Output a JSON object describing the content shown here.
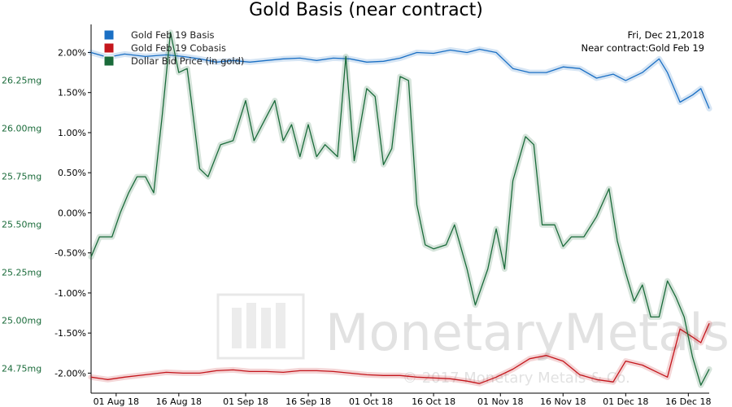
{
  "chart_data": {
    "type": "line",
    "title": "Gold Basis (near contract)",
    "info": {
      "date": "Fri, Dec 21,2018",
      "contract": "Near contract:Gold Feb 19"
    },
    "watermark": {
      "brand": "MonetaryMetals",
      "copyright": "© 2017 Monetary Metals & Co."
    },
    "x_ticks": [
      "01 Aug 18",
      "16 Aug 18",
      "01 Sep 18",
      "16 Sep 18",
      "01 Oct 18",
      "16 Oct 18",
      "01 Nov 18",
      "16 Nov 18",
      "01 Dec 18",
      "16 Dec 18"
    ],
    "x_range": [
      "2018-07-26",
      "2018-12-21"
    ],
    "left_axis": {
      "ticks": [
        "2.00%",
        "1.50%",
        "1.00%",
        "0.50%",
        "0.00%",
        "-0.50%",
        "-1.00%",
        "-1.50%",
        "-2.00%"
      ],
      "ylim": [
        -2.25,
        2.35
      ],
      "unit": "%"
    },
    "right_axis_labels": {
      "ticks": [
        "26.25mg",
        "26.00mg",
        "25.75mg",
        "25.50mg",
        "25.25mg",
        "25.00mg",
        "24.75mg"
      ],
      "ylim": [
        24.62,
        26.54
      ],
      "unit": "mg"
    },
    "series": [
      {
        "name": "Gold Feb 19 Basis",
        "color": "#1a6fc4",
        "axis": "left",
        "x": [
          "2018-07-26",
          "2018-07-30",
          "2018-08-03",
          "2018-08-08",
          "2018-08-13",
          "2018-08-17",
          "2018-08-21",
          "2018-08-25",
          "2018-08-29",
          "2018-09-02",
          "2018-09-06",
          "2018-09-10",
          "2018-09-14",
          "2018-09-18",
          "2018-09-22",
          "2018-09-26",
          "2018-09-30",
          "2018-10-04",
          "2018-10-08",
          "2018-10-12",
          "2018-10-16",
          "2018-10-20",
          "2018-10-24",
          "2018-10-27",
          "2018-10-31",
          "2018-11-04",
          "2018-11-08",
          "2018-11-12",
          "2018-11-16",
          "2018-11-20",
          "2018-11-24",
          "2018-11-28",
          "2018-12-01",
          "2018-12-05",
          "2018-12-09",
          "2018-12-11",
          "2018-12-14",
          "2018-12-17",
          "2018-12-19",
          "2018-12-21"
        ],
        "values": [
          2.0,
          1.94,
          1.98,
          1.95,
          1.97,
          1.95,
          1.92,
          1.88,
          1.9,
          1.88,
          1.9,
          1.92,
          1.93,
          1.9,
          1.93,
          1.92,
          1.88,
          1.89,
          1.93,
          2.0,
          1.99,
          2.03,
          2.0,
          2.04,
          2.0,
          1.8,
          1.75,
          1.75,
          1.82,
          1.8,
          1.68,
          1.73,
          1.65,
          1.75,
          1.92,
          1.75,
          1.38,
          1.47,
          1.55,
          1.3
        ]
      },
      {
        "name": "Gold Feb 19 Cobasis",
        "color": "#c4161c",
        "axis": "left",
        "x": [
          "2018-07-26",
          "2018-07-30",
          "2018-08-03",
          "2018-08-08",
          "2018-08-13",
          "2018-08-17",
          "2018-08-21",
          "2018-08-25",
          "2018-08-29",
          "2018-09-02",
          "2018-09-06",
          "2018-09-10",
          "2018-09-14",
          "2018-09-18",
          "2018-09-22",
          "2018-09-26",
          "2018-09-30",
          "2018-10-04",
          "2018-10-08",
          "2018-10-12",
          "2018-10-16",
          "2018-10-20",
          "2018-10-24",
          "2018-10-27",
          "2018-10-31",
          "2018-11-04",
          "2018-11-08",
          "2018-11-12",
          "2018-11-16",
          "2018-11-20",
          "2018-11-24",
          "2018-11-28",
          "2018-12-01",
          "2018-12-05",
          "2018-12-09",
          "2018-12-11",
          "2018-12-14",
          "2018-12-17",
          "2018-12-19",
          "2018-12-21"
        ],
        "values": [
          -2.05,
          -2.08,
          -2.05,
          -2.02,
          -1.99,
          -2.0,
          -2.0,
          -1.97,
          -1.96,
          -1.98,
          -1.98,
          -1.99,
          -1.97,
          -1.97,
          -1.98,
          -2.0,
          -2.02,
          -2.03,
          -2.03,
          -2.05,
          -2.06,
          -2.07,
          -2.1,
          -2.13,
          -2.05,
          -1.95,
          -1.82,
          -1.78,
          -1.85,
          -2.02,
          -2.08,
          -2.11,
          -1.85,
          -1.9,
          -2.0,
          -2.05,
          -1.45,
          -1.55,
          -1.62,
          -1.38
        ]
      },
      {
        "name": "Dollar Bid Price (in gold)",
        "color": "#1a6b3a",
        "axis": "left",
        "x": [
          "2018-07-26",
          "2018-07-28",
          "2018-07-31",
          "2018-08-02",
          "2018-08-04",
          "2018-08-06",
          "2018-08-08",
          "2018-08-10",
          "2018-08-12",
          "2018-08-14",
          "2018-08-16",
          "2018-08-18",
          "2018-08-19",
          "2018-08-21",
          "2018-08-23",
          "2018-08-26",
          "2018-08-29",
          "2018-09-01",
          "2018-09-03",
          "2018-09-05",
          "2018-09-08",
          "2018-09-10",
          "2018-09-12",
          "2018-09-14",
          "2018-09-16",
          "2018-09-18",
          "2018-09-20",
          "2018-09-23",
          "2018-09-25",
          "2018-09-27",
          "2018-09-30",
          "2018-10-02",
          "2018-10-04",
          "2018-10-06",
          "2018-10-08",
          "2018-10-10",
          "2018-10-12",
          "2018-10-14",
          "2018-10-16",
          "2018-10-19",
          "2018-10-21",
          "2018-10-24",
          "2018-10-26",
          "2018-10-29",
          "2018-10-31",
          "2018-11-02",
          "2018-11-04",
          "2018-11-07",
          "2018-11-09",
          "2018-11-11",
          "2018-11-14",
          "2018-11-16",
          "2018-11-18",
          "2018-11-21",
          "2018-11-24",
          "2018-11-27",
          "2018-11-29",
          "2018-12-01",
          "2018-12-03",
          "2018-12-05",
          "2018-12-07",
          "2018-12-09",
          "2018-12-11",
          "2018-12-13",
          "2018-12-15",
          "2018-12-17",
          "2018-12-19",
          "2018-12-21"
        ],
        "values": [
          -0.55,
          -0.3,
          -0.3,
          0.0,
          0.25,
          0.45,
          0.45,
          0.25,
          1.2,
          2.25,
          1.75,
          1.8,
          1.4,
          0.55,
          0.45,
          0.85,
          0.9,
          1.4,
          0.9,
          1.1,
          1.4,
          0.9,
          1.1,
          0.7,
          1.1,
          0.7,
          0.85,
          0.7,
          1.95,
          0.65,
          1.55,
          1.45,
          0.6,
          0.8,
          1.7,
          1.65,
          0.1,
          -0.4,
          -0.45,
          -0.4,
          -0.15,
          -0.7,
          -1.15,
          -0.7,
          -0.2,
          -0.7,
          0.4,
          0.95,
          0.85,
          -0.15,
          -0.15,
          -0.42,
          -0.3,
          -0.3,
          -0.05,
          0.3,
          -0.35,
          -0.75,
          -1.1,
          -0.9,
          -1.3,
          -1.3,
          -0.85,
          -1.05,
          -1.3,
          -1.8,
          -2.15,
          -1.95
        ]
      }
    ],
    "right_axis_color": "#1a6b3a",
    "grid": false,
    "legend_position": "top-left"
  }
}
